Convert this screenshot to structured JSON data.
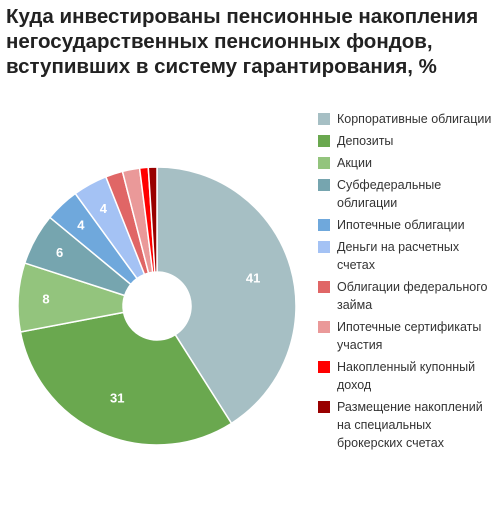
{
  "chart_data": {
    "type": "pie",
    "donut": true,
    "title": "Куда инвестированы пенсионные накопления негосударственных пенсионных фондов, вступивших в систему гарантирования, %",
    "legend_position": "right",
    "slices": [
      {
        "label": "Корпоративные облигации",
        "value": 41,
        "color": "#a6bfc4",
        "data_label": "41"
      },
      {
        "label": "Депозиты",
        "value": 31,
        "color": "#6aa84f",
        "data_label": "31"
      },
      {
        "label": "Акции",
        "value": 8,
        "color": "#93c47d",
        "data_label": "8"
      },
      {
        "label": "Субфедеральные облигации",
        "value": 6,
        "color": "#76a5af",
        "data_label": "6"
      },
      {
        "label": "Ипотечные облигации",
        "value": 4,
        "color": "#6fa8dc",
        "data_label": "4"
      },
      {
        "label": "Деньги на расчетных счетах",
        "value": 4,
        "color": "#a4c2f4",
        "data_label": "4"
      },
      {
        "label": "Облигации федерального займа",
        "value": 2,
        "color": "#e06666",
        "data_label": ""
      },
      {
        "label": "Ипотечные сертификаты участия",
        "value": 2,
        "color": "#ea9999",
        "data_label": ""
      },
      {
        "label": "Накопленный купонный доход",
        "value": 1,
        "color": "#ff0000",
        "data_label": ""
      },
      {
        "label": "Размещение накоплений на специальных брокерских счетах",
        "value": 1,
        "color": "#990000",
        "data_label": ""
      }
    ]
  }
}
